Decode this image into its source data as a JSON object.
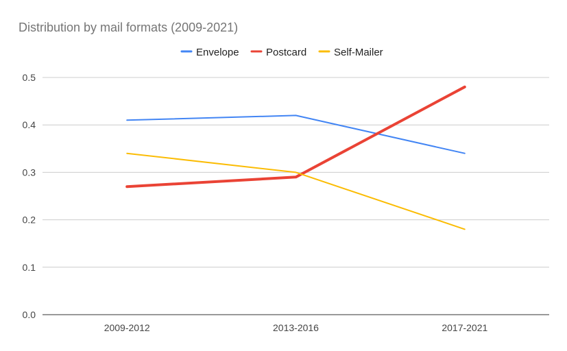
{
  "chart_data": {
    "type": "line",
    "title": "Distribution by mail formats (2009-2021)",
    "xlabel": "",
    "ylabel": "",
    "categories": [
      "2009-2012",
      "2013-2016",
      "2017-2021"
    ],
    "ylim": [
      0,
      0.5
    ],
    "yticks": [
      "0.0",
      "0.1",
      "0.2",
      "0.3",
      "0.4",
      "0.5"
    ],
    "grid": true,
    "legend_position": "top",
    "series": [
      {
        "name": "Envelope",
        "color": "#4285f4",
        "values": [
          0.41,
          0.42,
          0.34
        ]
      },
      {
        "name": "Postcard",
        "color": "#ea4335",
        "values": [
          0.27,
          0.29,
          0.48
        ]
      },
      {
        "name": "Self-Mailer",
        "color": "#fbbc04",
        "values": [
          0.34,
          0.3,
          0.18
        ]
      }
    ]
  }
}
